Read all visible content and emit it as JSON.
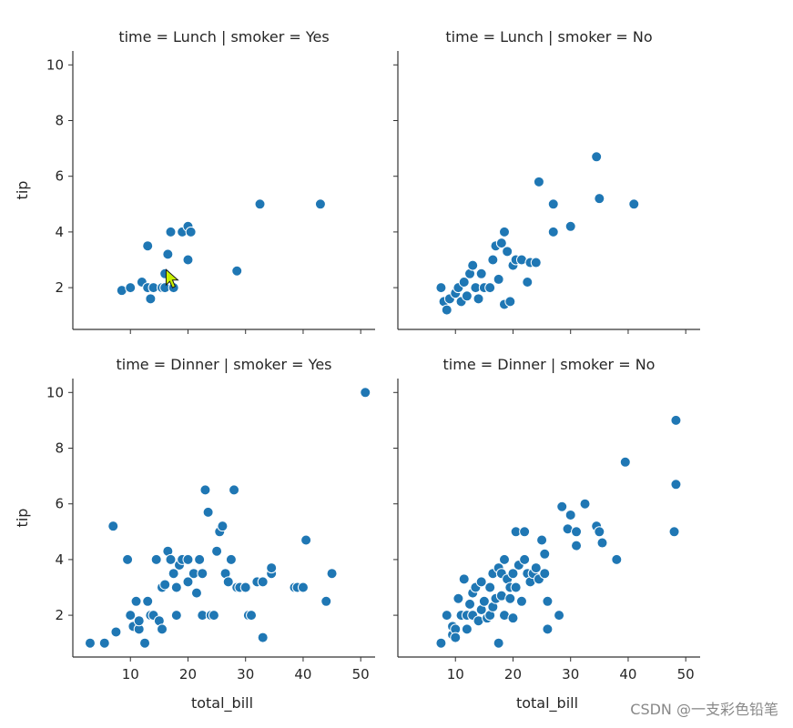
{
  "chart_data": {
    "type": "scatter",
    "x_variable": "total_bill",
    "y_variable": "tip",
    "xlabel": "total_bill",
    "ylabel": "tip",
    "xlim": [
      0,
      52.5
    ],
    "ylim": [
      0.5,
      10.5
    ],
    "xticks": [
      10,
      20,
      30,
      40,
      50
    ],
    "yticks": [
      2,
      4,
      6,
      8,
      10
    ],
    "color": "#1f77b4",
    "panels": [
      {
        "title": "time = Lunch | smoker = Yes",
        "points": [
          [
            8.5,
            1.9
          ],
          [
            10,
            2
          ],
          [
            12,
            2.2
          ],
          [
            13,
            2
          ],
          [
            13,
            3.5
          ],
          [
            13.5,
            1.6
          ],
          [
            14,
            2
          ],
          [
            15.5,
            2
          ],
          [
            16,
            2.5
          ],
          [
            16,
            2
          ],
          [
            16.5,
            3.2
          ],
          [
            17,
            4
          ],
          [
            17.5,
            2
          ],
          [
            19,
            4
          ],
          [
            20,
            4.2
          ],
          [
            20.5,
            4
          ],
          [
            20,
            3
          ],
          [
            28.5,
            2.6
          ],
          [
            32.5,
            5
          ],
          [
            43,
            5
          ]
        ]
      },
      {
        "title": "time = Lunch | smoker = No",
        "points": [
          [
            7.5,
            2
          ],
          [
            8,
            1.5
          ],
          [
            8.5,
            1.2
          ],
          [
            9,
            1.6
          ],
          [
            10,
            1.8
          ],
          [
            10.5,
            2
          ],
          [
            11,
            1.5
          ],
          [
            11.5,
            2.2
          ],
          [
            12,
            1.7
          ],
          [
            12.5,
            2.5
          ],
          [
            13,
            2.8
          ],
          [
            13.5,
            2
          ],
          [
            14,
            1.6
          ],
          [
            14.5,
            2.5
          ],
          [
            15,
            2
          ],
          [
            16,
            2
          ],
          [
            16.5,
            3
          ],
          [
            17,
            3.5
          ],
          [
            17.5,
            2.3
          ],
          [
            18,
            3.6
          ],
          [
            18.5,
            4
          ],
          [
            19,
            3.3
          ],
          [
            18.5,
            1.4
          ],
          [
            19.5,
            1.5
          ],
          [
            20,
            2.8
          ],
          [
            20.5,
            3
          ],
          [
            21.5,
            3
          ],
          [
            22.5,
            2.2
          ],
          [
            23,
            2.9
          ],
          [
            24,
            2.9
          ],
          [
            24.5,
            5.8
          ],
          [
            27,
            5
          ],
          [
            27,
            4
          ],
          [
            30,
            4.2
          ],
          [
            34.5,
            6.7
          ],
          [
            35,
            5.2
          ],
          [
            41,
            5
          ]
        ]
      },
      {
        "title": "time = Dinner | smoker = Yes",
        "points": [
          [
            3,
            1
          ],
          [
            5.5,
            1
          ],
          [
            7,
            5.2
          ],
          [
            7.5,
            1.4
          ],
          [
            9.5,
            4
          ],
          [
            10,
            2
          ],
          [
            10.5,
            1.6
          ],
          [
            11,
            2.5
          ],
          [
            11.5,
            1.5
          ],
          [
            11.5,
            1.8
          ],
          [
            12.5,
            1
          ],
          [
            13,
            2.5
          ],
          [
            13.5,
            2
          ],
          [
            14,
            2
          ],
          [
            14.5,
            4
          ],
          [
            15,
            1.8
          ],
          [
            15.5,
            3
          ],
          [
            15.5,
            1.5
          ],
          [
            16,
            3.1
          ],
          [
            16.5,
            4.3
          ],
          [
            17,
            4
          ],
          [
            17.5,
            3.5
          ],
          [
            18,
            3
          ],
          [
            18,
            2
          ],
          [
            18.5,
            3.8
          ],
          [
            19,
            4
          ],
          [
            20,
            3.2
          ],
          [
            20,
            4
          ],
          [
            21,
            3.5
          ],
          [
            21.5,
            2.8
          ],
          [
            22,
            4
          ],
          [
            22.5,
            2
          ],
          [
            22.5,
            3.5
          ],
          [
            23,
            6.5
          ],
          [
            23.5,
            5.7
          ],
          [
            24,
            2
          ],
          [
            24.5,
            2
          ],
          [
            25,
            4.3
          ],
          [
            25.5,
            5
          ],
          [
            26,
            5.2
          ],
          [
            26.5,
            3.5
          ],
          [
            27,
            3.2
          ],
          [
            27.5,
            4
          ],
          [
            28,
            6.5
          ],
          [
            28.5,
            3
          ],
          [
            29,
            3
          ],
          [
            30,
            3
          ],
          [
            30.5,
            2
          ],
          [
            31,
            2
          ],
          [
            32,
            3.2
          ],
          [
            33,
            3.2
          ],
          [
            33,
            1.2
          ],
          [
            34.5,
            3.5
          ],
          [
            34.5,
            3.7
          ],
          [
            38.5,
            3
          ],
          [
            39,
            3
          ],
          [
            40,
            3
          ],
          [
            40.5,
            4.7
          ],
          [
            44,
            2.5
          ],
          [
            45,
            3.5
          ],
          [
            50.8,
            10
          ]
        ]
      },
      {
        "title": "time = Dinner | smoker = No",
        "points": [
          [
            7.5,
            1
          ],
          [
            8.5,
            2
          ],
          [
            9.5,
            1.3
          ],
          [
            9.5,
            1.6
          ],
          [
            10,
            1.5
          ],
          [
            10,
            1.2
          ],
          [
            10.5,
            2.6
          ],
          [
            11,
            2
          ],
          [
            11.5,
            3.3
          ],
          [
            12,
            2
          ],
          [
            12,
            1.5
          ],
          [
            12.5,
            2.4
          ],
          [
            13,
            2.8
          ],
          [
            13,
            2
          ],
          [
            13.5,
            3
          ],
          [
            14,
            1.8
          ],
          [
            14.5,
            3.2
          ],
          [
            14.5,
            2.2
          ],
          [
            15,
            2.5
          ],
          [
            15.5,
            1.9
          ],
          [
            16,
            3
          ],
          [
            16,
            2
          ],
          [
            16.5,
            3.5
          ],
          [
            16.5,
            2.3
          ],
          [
            17,
            2.6
          ],
          [
            17.5,
            3.7
          ],
          [
            17.5,
            1
          ],
          [
            18,
            2.7
          ],
          [
            18,
            3.5
          ],
          [
            18.5,
            2
          ],
          [
            18.5,
            4
          ],
          [
            19,
            3.3
          ],
          [
            19.5,
            2.6
          ],
          [
            19.5,
            3
          ],
          [
            20,
            3.5
          ],
          [
            20,
            1.9
          ],
          [
            20.5,
            5
          ],
          [
            20.5,
            3
          ],
          [
            21,
            3.8
          ],
          [
            21.5,
            2.5
          ],
          [
            22,
            4
          ],
          [
            22,
            5
          ],
          [
            22.5,
            3.5
          ],
          [
            23,
            3.2
          ],
          [
            23.5,
            3.5
          ],
          [
            24,
            3.7
          ],
          [
            24.5,
            3.3
          ],
          [
            25,
            4.7
          ],
          [
            25.5,
            4.2
          ],
          [
            25.5,
            3.5
          ],
          [
            26,
            1.5
          ],
          [
            26,
            2.5
          ],
          [
            28,
            2
          ],
          [
            28.5,
            5.9
          ],
          [
            29.5,
            5.1
          ],
          [
            30,
            5.6
          ],
          [
            31,
            5
          ],
          [
            31,
            4.5
          ],
          [
            32.5,
            6
          ],
          [
            34.5,
            5.2
          ],
          [
            35,
            5
          ],
          [
            35.5,
            4.6
          ],
          [
            38,
            4
          ],
          [
            39.5,
            7.5
          ],
          [
            48,
            5
          ],
          [
            48.3,
            6.7
          ],
          [
            48.3,
            9
          ]
        ]
      }
    ]
  },
  "watermark": "CSDN @一支彩色铅笔"
}
